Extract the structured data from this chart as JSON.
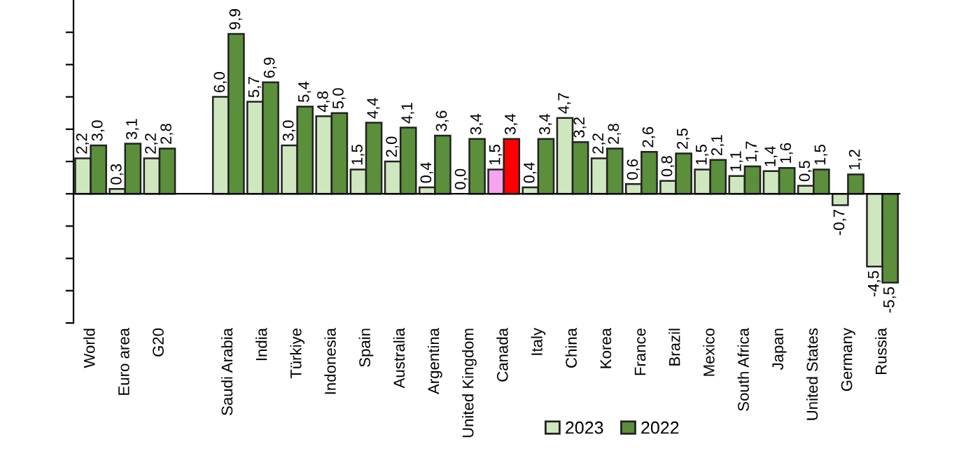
{
  "chart_data": {
    "type": "bar",
    "categories": [
      "World",
      "Euro area",
      "G20",
      null,
      "Saudi Arabia",
      "India",
      "Türkiye",
      "Indonesia",
      "Spain",
      "Australia",
      "Argentina",
      "United Kingdom",
      "Canada",
      "Italy",
      "China",
      "Korea",
      "France",
      "Brazil",
      "Mexico",
      "South Africa",
      "Japan",
      "United States",
      "Germany",
      "Russia"
    ],
    "series": [
      {
        "name": "2023",
        "color": "#cfe7bf",
        "colors": [
          "#cfe7bf",
          "#cfe7bf",
          "#cfe7bf",
          "#cfe7bf",
          "#cfe7bf",
          "#cfe7bf",
          "#cfe7bf",
          "#cfe7bf",
          "#cfe7bf",
          "#cfe7bf",
          "#cfe7bf",
          "#cfe7bf",
          "#f7a3f0",
          "#cfe7bf",
          "#cfe7bf",
          "#cfe7bf",
          "#cfe7bf",
          "#cfe7bf",
          "#cfe7bf",
          "#cfe7bf",
          "#cfe7bf",
          "#cfe7bf",
          "#cfe7bf",
          "#cfe7bf"
        ],
        "values": [
          2.2,
          0.3,
          2.2,
          null,
          6.0,
          5.7,
          3.0,
          4.8,
          1.5,
          2.0,
          0.4,
          0.0,
          1.5,
          0.4,
          4.7,
          2.2,
          0.6,
          0.8,
          1.5,
          1.1,
          1.4,
          0.5,
          -0.7,
          -4.5
        ],
        "value_labels": [
          "2,2",
          "0,3",
          "2,2",
          null,
          "6,0",
          "5,7",
          "3,0",
          "4,8",
          "1,5",
          "2,0",
          "0,4",
          "0,0",
          "1,5",
          "0,4",
          "4,7",
          "2,2",
          "0,6",
          "0,8",
          "1,5",
          "1,1",
          "1,4",
          "0,5",
          "-0,7",
          "-4,5"
        ]
      },
      {
        "name": "2022",
        "color": "#5b8f3b",
        "colors": [
          "#5b8f3b",
          "#5b8f3b",
          "#5b8f3b",
          "#5b8f3b",
          "#5b8f3b",
          "#5b8f3b",
          "#5b8f3b",
          "#5b8f3b",
          "#5b8f3b",
          "#5b8f3b",
          "#5b8f3b",
          "#5b8f3b",
          "#ff0000",
          "#5b8f3b",
          "#5b8f3b",
          "#5b8f3b",
          "#5b8f3b",
          "#5b8f3b",
          "#5b8f3b",
          "#5b8f3b",
          "#5b8f3b",
          "#5b8f3b",
          "#5b8f3b",
          "#5b8f3b"
        ],
        "values": [
          3.0,
          3.1,
          2.8,
          null,
          9.9,
          6.9,
          5.4,
          5.0,
          4.4,
          4.1,
          3.6,
          3.4,
          3.4,
          3.4,
          3.2,
          2.8,
          2.6,
          2.5,
          2.1,
          1.7,
          1.6,
          1.5,
          1.2,
          -5.5
        ],
        "value_labels": [
          "3,0",
          "3,1",
          "2,8",
          null,
          "9,9",
          "6,9",
          "5,4",
          "5,0",
          "4,4",
          "4,1",
          "3,6",
          "3,4",
          "3,4",
          "3,4",
          "3,2",
          "2,8",
          "2,6",
          "2,5",
          "2,1",
          "1,7",
          "1,6",
          "1,5",
          "1,2",
          "-5,5"
        ]
      }
    ],
    "ylim": [
      -8,
      12
    ],
    "yticks": [
      {
        "value": -8,
        "label": null
      },
      {
        "value": -6,
        "label": null
      },
      {
        "value": -4,
        "label": null
      },
      {
        "value": -2,
        "label": null
      },
      {
        "value": 0,
        "label": null
      },
      {
        "value": 2,
        "label": null
      },
      {
        "value": 4,
        "label": null
      },
      {
        "value": 6,
        "label": null
      },
      {
        "value": 8,
        "label": null
      },
      {
        "value": 10,
        "label": null
      }
    ],
    "tick_labels": "x",
    "grid": false,
    "legend": "bottom"
  }
}
